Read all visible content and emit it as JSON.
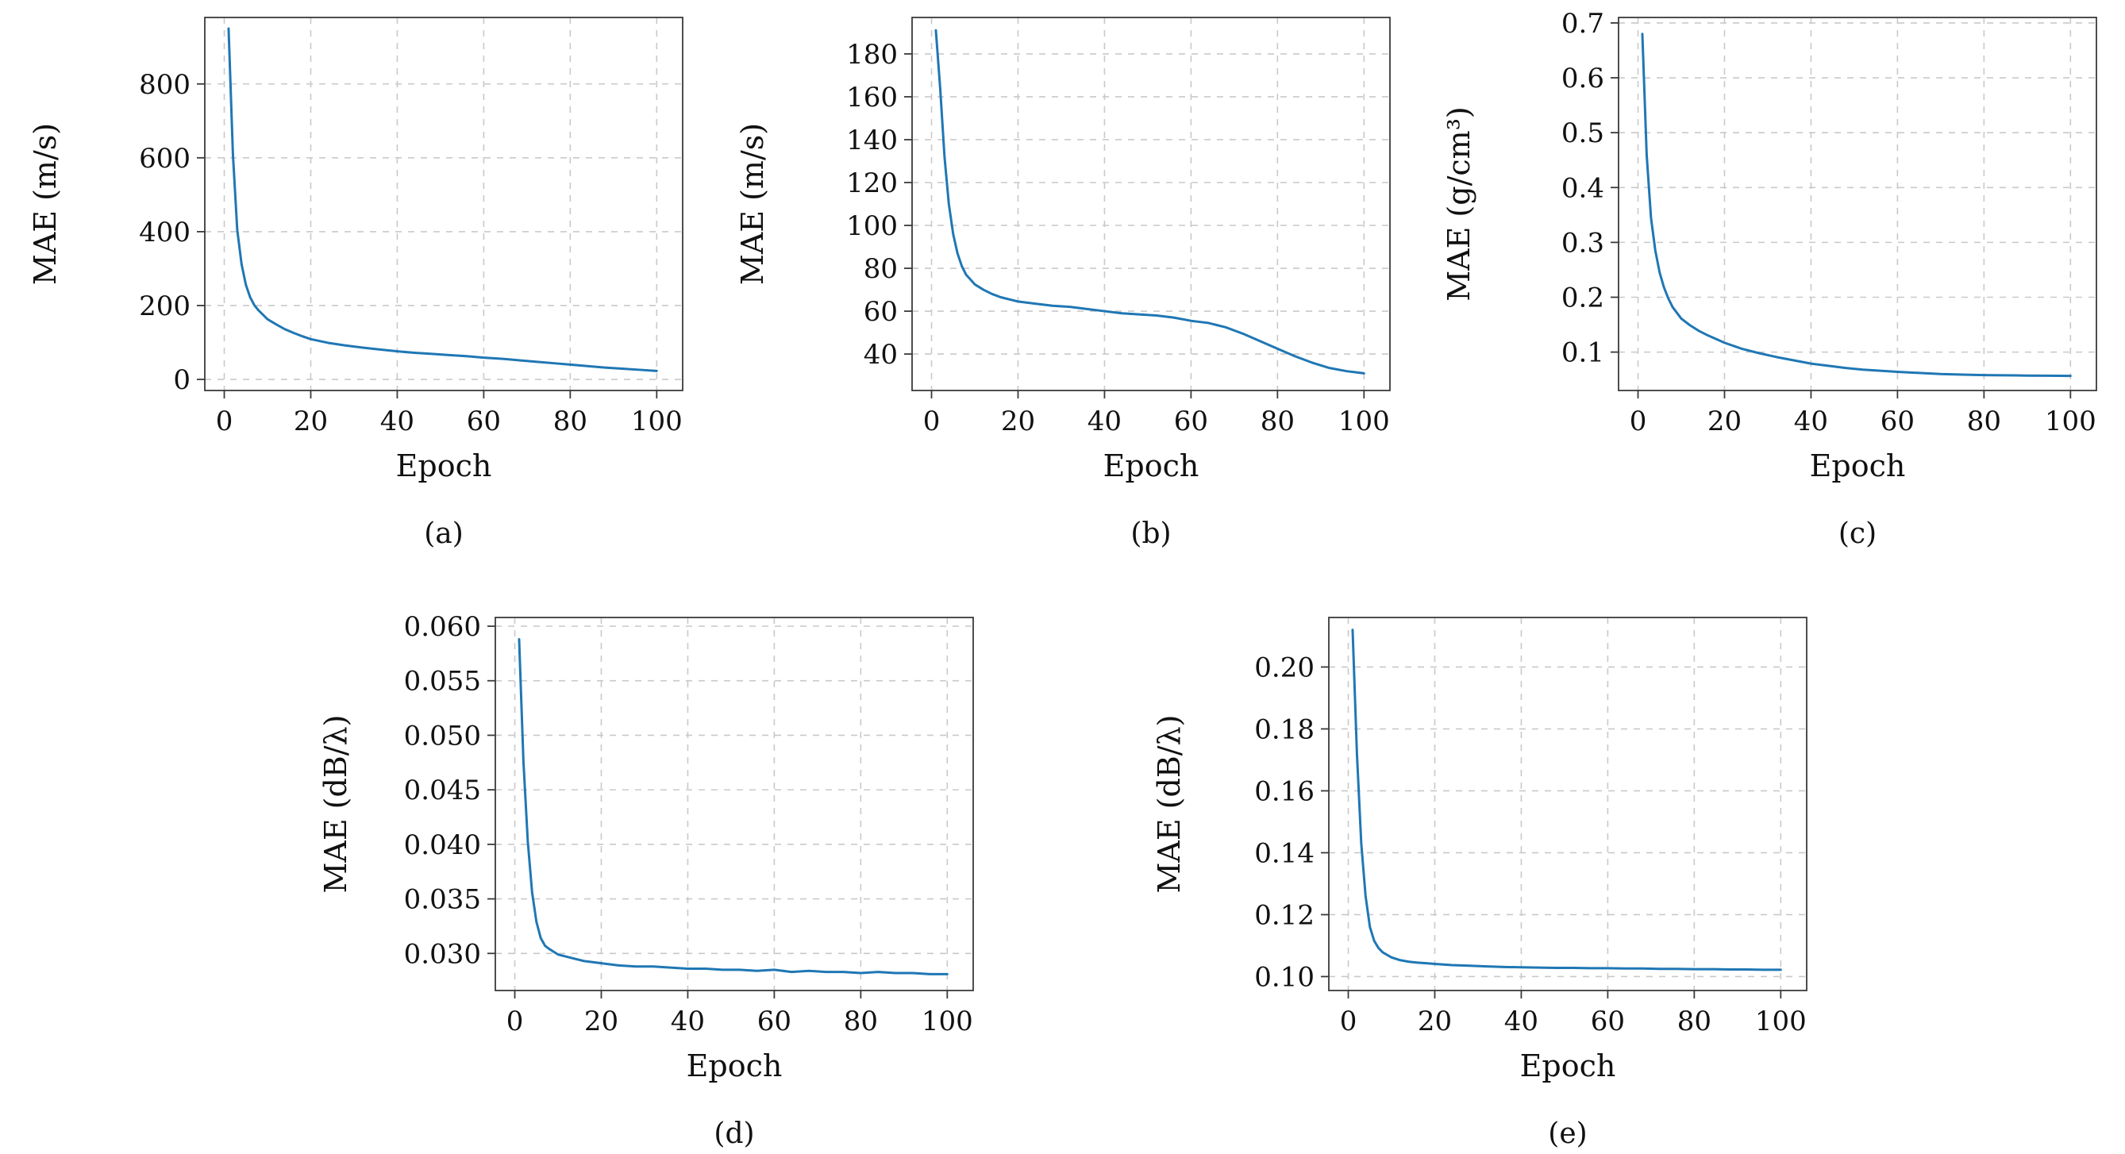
{
  "figure": {
    "description": "Five training-loss curves (MAE vs Epoch) arranged 3 on top row, 2 on bottom row"
  },
  "colors": {
    "line": "#1f77b4",
    "grid": "#c9c9c9",
    "axis": "#3a3a3a",
    "text": "#111111",
    "background": "#ffffff"
  },
  "chart_data": [
    {
      "type": "line",
      "caption": "(a)",
      "xlabel": "Epoch",
      "ylabel": "MAE (m/s)",
      "xlim": [
        -4.5,
        106
      ],
      "ylim": [
        -30,
        980
      ],
      "xticks": [
        0,
        20,
        40,
        60,
        80,
        100
      ],
      "xtick_labels": [
        "0",
        "20",
        "40",
        "60",
        "80",
        "100"
      ],
      "yticks": [
        0,
        200,
        400,
        600,
        800
      ],
      "ytick_labels": [
        "0",
        "200",
        "400",
        "600",
        "800"
      ],
      "grid": "dashed",
      "legend": "none",
      "x": [
        1,
        2,
        3,
        4,
        5,
        6,
        7,
        8,
        10,
        12,
        14,
        16,
        18,
        20,
        24,
        28,
        32,
        36,
        40,
        44,
        48,
        52,
        56,
        60,
        64,
        68,
        72,
        76,
        80,
        84,
        88,
        92,
        96,
        100
      ],
      "y": [
        950,
        610,
        405,
        312,
        256,
        222,
        200,
        186,
        163,
        149,
        136,
        126,
        117,
        109,
        99,
        92,
        86,
        81,
        76,
        72,
        69,
        66,
        63,
        59,
        56,
        52,
        48,
        44,
        40,
        36,
        32,
        29,
        26,
        23
      ]
    },
    {
      "type": "line",
      "caption": "(b)",
      "xlabel": "Epoch",
      "ylabel": "MAE (m/s)",
      "xlim": [
        -4.5,
        106
      ],
      "ylim": [
        23,
        197
      ],
      "xticks": [
        0,
        20,
        40,
        60,
        80,
        100
      ],
      "xtick_labels": [
        "0",
        "20",
        "40",
        "60",
        "80",
        "100"
      ],
      "yticks": [
        40,
        60,
        80,
        100,
        120,
        140,
        160,
        180
      ],
      "ytick_labels": [
        "40",
        "60",
        "80",
        "100",
        "120",
        "140",
        "160",
        "180"
      ],
      "grid": "dashed",
      "legend": "none",
      "x": [
        1,
        2,
        3,
        4,
        5,
        6,
        7,
        8,
        10,
        12,
        14,
        16,
        18,
        20,
        24,
        28,
        32,
        36,
        40,
        44,
        48,
        52,
        56,
        60,
        62,
        64,
        66,
        68,
        70,
        72,
        76,
        80,
        84,
        88,
        92,
        96,
        98,
        100
      ],
      "y": [
        191,
        164,
        132,
        110,
        96,
        87,
        81,
        77,
        72.5,
        70,
        68,
        66.5,
        65.5,
        64.5,
        63.5,
        62.5,
        62,
        61,
        60,
        59,
        58.5,
        58,
        57,
        55.5,
        55,
        54.5,
        53.5,
        52.5,
        51,
        49.5,
        46,
        42.5,
        39,
        36,
        33.5,
        32,
        31.5,
        31
      ]
    },
    {
      "type": "line",
      "caption": "(c)",
      "xlabel": "Epoch",
      "ylabel": "MAE (g/cm³)",
      "xlim": [
        -4.5,
        106
      ],
      "ylim": [
        0.03,
        0.71
      ],
      "xticks": [
        0,
        20,
        40,
        60,
        80,
        100
      ],
      "xtick_labels": [
        "0",
        "20",
        "40",
        "60",
        "80",
        "100"
      ],
      "yticks": [
        0.1,
        0.2,
        0.3,
        0.4,
        0.5,
        0.6,
        0.7
      ],
      "ytick_labels": [
        "0.1",
        "0.2",
        "0.3",
        "0.4",
        "0.5",
        "0.6",
        "0.7"
      ],
      "grid": "dashed",
      "legend": "none",
      "x": [
        1,
        2,
        3,
        4,
        5,
        6,
        7,
        8,
        10,
        12,
        14,
        16,
        18,
        20,
        24,
        28,
        32,
        36,
        40,
        44,
        48,
        52,
        56,
        60,
        65,
        70,
        75,
        80,
        85,
        90,
        95,
        100
      ],
      "y": [
        0.68,
        0.46,
        0.345,
        0.285,
        0.245,
        0.218,
        0.198,
        0.182,
        0.161,
        0.149,
        0.139,
        0.131,
        0.124,
        0.117,
        0.106,
        0.098,
        0.091,
        0.085,
        0.079,
        0.075,
        0.071,
        0.068,
        0.066,
        0.064,
        0.062,
        0.06,
        0.059,
        0.058,
        0.0577,
        0.0572,
        0.0569,
        0.0566
      ]
    },
    {
      "type": "line",
      "caption": "(d)",
      "xlabel": "Epoch",
      "ylabel": "MAE (dB/λ)",
      "xlim": [
        -4.5,
        106
      ],
      "ylim": [
        0.0266,
        0.0608
      ],
      "xticks": [
        0,
        20,
        40,
        60,
        80,
        100
      ],
      "xtick_labels": [
        "0",
        "20",
        "40",
        "60",
        "80",
        "100"
      ],
      "yticks": [
        0.03,
        0.035,
        0.04,
        0.045,
        0.05,
        0.055,
        0.06
      ],
      "ytick_labels": [
        "0.030",
        "0.035",
        "0.040",
        "0.045",
        "0.050",
        "0.055",
        "0.060"
      ],
      "grid": "dashed",
      "legend": "none",
      "x": [
        1,
        2,
        3,
        4,
        5,
        6,
        7,
        8,
        10,
        12,
        14,
        16,
        18,
        20,
        24,
        28,
        32,
        36,
        40,
        44,
        48,
        52,
        56,
        60,
        64,
        68,
        72,
        76,
        80,
        84,
        88,
        92,
        96,
        100
      ],
      "y": [
        0.0588,
        0.0476,
        0.0403,
        0.0356,
        0.0329,
        0.0314,
        0.0307,
        0.0304,
        0.0299,
        0.0297,
        0.0295,
        0.0293,
        0.0292,
        0.0291,
        0.0289,
        0.0288,
        0.0288,
        0.0287,
        0.0286,
        0.0286,
        0.0285,
        0.0285,
        0.0284,
        0.0285,
        0.0283,
        0.0284,
        0.0283,
        0.0283,
        0.0282,
        0.0283,
        0.0282,
        0.0282,
        0.0281,
        0.0281
      ]
    },
    {
      "type": "line",
      "caption": "(e)",
      "xlabel": "Epoch",
      "ylabel": "MAE (dB/λ)",
      "xlim": [
        -4.5,
        106
      ],
      "ylim": [
        0.0955,
        0.216
      ],
      "xticks": [
        0,
        20,
        40,
        60,
        80,
        100
      ],
      "xtick_labels": [
        "0",
        "20",
        "40",
        "60",
        "80",
        "100"
      ],
      "yticks": [
        0.1,
        0.12,
        0.14,
        0.16,
        0.18,
        0.2
      ],
      "ytick_labels": [
        "0.10",
        "0.12",
        "0.14",
        "0.16",
        "0.18",
        "0.20"
      ],
      "grid": "dashed",
      "legend": "none",
      "x": [
        1,
        2,
        3,
        4,
        5,
        6,
        7,
        8,
        10,
        12,
        14,
        16,
        18,
        20,
        24,
        28,
        32,
        36,
        40,
        44,
        48,
        52,
        56,
        60,
        64,
        68,
        72,
        76,
        80,
        84,
        88,
        92,
        96,
        100
      ],
      "y": [
        0.212,
        0.172,
        0.143,
        0.126,
        0.116,
        0.1115,
        0.1092,
        0.1078,
        0.1062,
        0.1053,
        0.1048,
        0.1045,
        0.1043,
        0.1041,
        0.1037,
        0.1035,
        0.1033,
        0.1031,
        0.103,
        0.1029,
        0.1028,
        0.1028,
        0.1027,
        0.1027,
        0.1026,
        0.1026,
        0.1025,
        0.1025,
        0.1024,
        0.1024,
        0.1023,
        0.1023,
        0.1022,
        0.1022
      ]
    }
  ]
}
